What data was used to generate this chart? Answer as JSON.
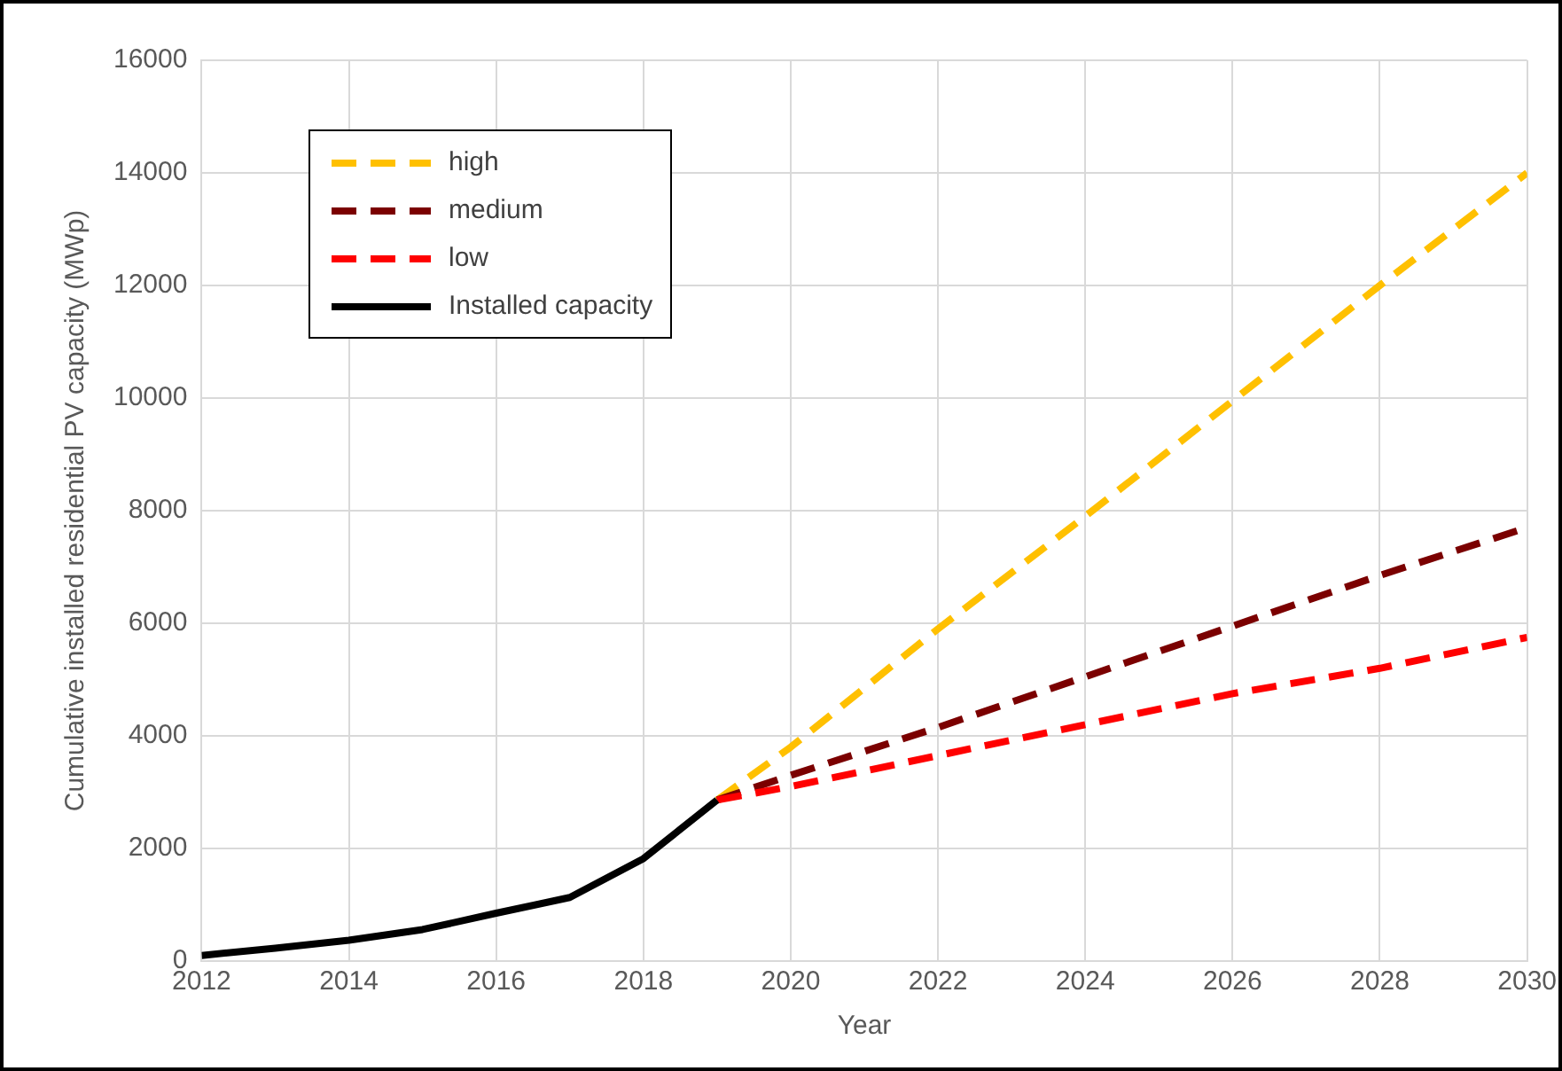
{
  "chart_data": {
    "type": "line",
    "xlabel": "Year",
    "ylabel": "Cumulative installed residential PV capacity (MWp)",
    "xlim": [
      2012,
      2030
    ],
    "xticks": [
      2012,
      2014,
      2016,
      2018,
      2020,
      2022,
      2024,
      2026,
      2028,
      2030
    ],
    "ylim": [
      0,
      16000
    ],
    "yticks": [
      0,
      2000,
      4000,
      6000,
      8000,
      10000,
      12000,
      14000,
      16000
    ],
    "grid": true,
    "legend": "top left",
    "marker": "none",
    "series": [
      {
        "name": "high",
        "color": "#ffc000",
        "line_style": "dashed",
        "x": [
          2019,
          2020,
          2022,
          2024,
          2026,
          2028,
          2030
        ],
        "values": [
          2860,
          3800,
          5900,
          7900,
          9950,
          12000,
          14000
        ]
      },
      {
        "name": "medium",
        "color": "#7b0000",
        "line_style": "dashed",
        "x": [
          2019,
          2020,
          2022,
          2024,
          2026,
          2028,
          2030
        ],
        "values": [
          2860,
          3300,
          4150,
          5050,
          5950,
          6850,
          7700
        ]
      },
      {
        "name": "low",
        "color": "#ff0000",
        "line_style": "dashed",
        "x": [
          2019,
          2020,
          2022,
          2024,
          2026,
          2028,
          2030
        ],
        "values": [
          2860,
          3100,
          3650,
          4200,
          4750,
          5200,
          5750
        ]
      },
      {
        "name": "Installed capacity",
        "color": "#000000",
        "line_style": "solid",
        "x": [
          2012,
          2013,
          2014,
          2015,
          2016,
          2017,
          2018,
          2019
        ],
        "values": [
          100,
          230,
          370,
          560,
          850,
          1130,
          1820,
          2860
        ]
      }
    ]
  }
}
